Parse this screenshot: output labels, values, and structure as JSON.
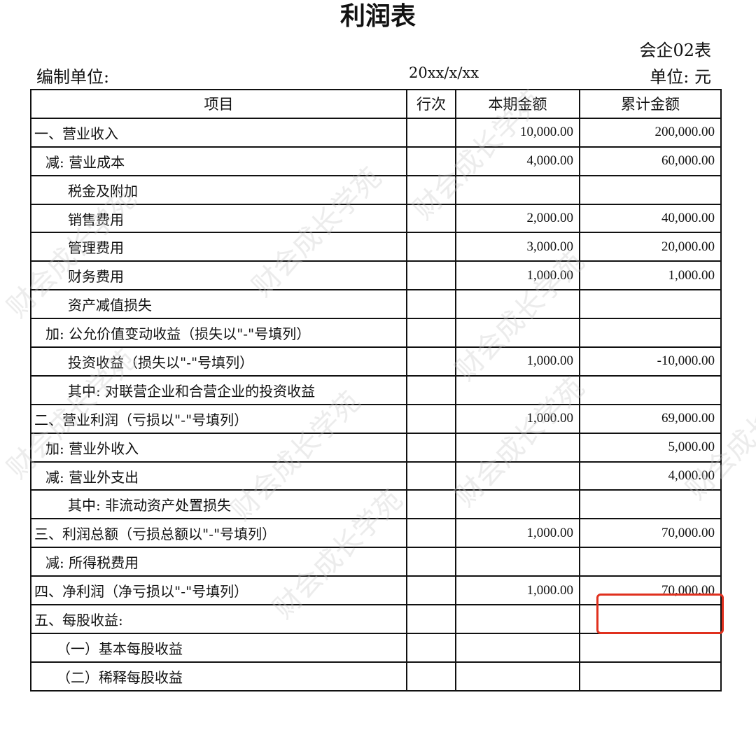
{
  "title": "利润表",
  "form_no": "会企02表",
  "prepared_by_label": "编制单位:",
  "date": "20xx/x/xx",
  "unit": "单位: 元",
  "watermark": "财会成长学苑",
  "highlight_color": "#e0301e",
  "headers": [
    "项目",
    "行次",
    "本期金额",
    "累计金额"
  ],
  "rows": [
    {
      "item": "一、营业收入",
      "line": "",
      "current": "10,000.00",
      "cumulative": "200,000.00",
      "indent": 0
    },
    {
      "item": "减: 营业成本",
      "line": "",
      "current": "4,000.00",
      "cumulative": "60,000.00",
      "indent": 1
    },
    {
      "item": "税金及附加",
      "line": "",
      "current": "",
      "cumulative": "",
      "indent": 2
    },
    {
      "item": "销售费用",
      "line": "",
      "current": "2,000.00",
      "cumulative": "40,000.00",
      "indent": 2
    },
    {
      "item": "管理费用",
      "line": "",
      "current": "3,000.00",
      "cumulative": "20,000.00",
      "indent": 2
    },
    {
      "item": "财务费用",
      "line": "",
      "current": "1,000.00",
      "cumulative": "1,000.00",
      "indent": 2
    },
    {
      "item": "资产减值损失",
      "line": "",
      "current": "",
      "cumulative": "",
      "indent": 2
    },
    {
      "item": "加: 公允价值变动收益（损失以\"-\"号填列）",
      "line": "",
      "current": "",
      "cumulative": "",
      "indent": 1
    },
    {
      "item": "投资收益（损失以\"-\"号填列）",
      "line": "",
      "current": "1,000.00",
      "cumulative": "-10,000.00",
      "indent": 2
    },
    {
      "item": "其中: 对联营企业和合营企业的投资收益",
      "line": "",
      "current": "",
      "cumulative": "",
      "indent": 2
    },
    {
      "item": "二、营业利润（亏损以\"-\"号填列）",
      "line": "",
      "current": "1,000.00",
      "cumulative": "69,000.00",
      "indent": 0
    },
    {
      "item": "加: 营业外收入",
      "line": "",
      "current": "",
      "cumulative": "5,000.00",
      "indent": 1
    },
    {
      "item": "减: 营业外支出",
      "line": "",
      "current": "",
      "cumulative": "4,000.00",
      "indent": 1
    },
    {
      "item": "其中: 非流动资产处置损失",
      "line": "",
      "current": "",
      "cumulative": "",
      "indent": 2
    },
    {
      "item": "三、利润总额（亏损总额以\"-\"号填列）",
      "line": "",
      "current": "1,000.00",
      "cumulative": "70,000.00",
      "indent": 0
    },
    {
      "item": "减: 所得税费用",
      "line": "",
      "current": "",
      "cumulative": "",
      "indent": 1
    },
    {
      "item": "四、净利润（净亏损以\"-\"号填列）",
      "line": "",
      "current": "1,000.00",
      "cumulative": "70,000.00",
      "indent": 0
    },
    {
      "item": "五、每股收益:",
      "line": "",
      "current": "",
      "cumulative": "",
      "indent": 0
    },
    {
      "item": "（一）基本每股收益",
      "line": "",
      "current": "",
      "cumulative": "",
      "indent": 3
    },
    {
      "item": "（二）稀释每股收益",
      "line": "",
      "current": "",
      "cumulative": "",
      "indent": 3
    }
  ]
}
